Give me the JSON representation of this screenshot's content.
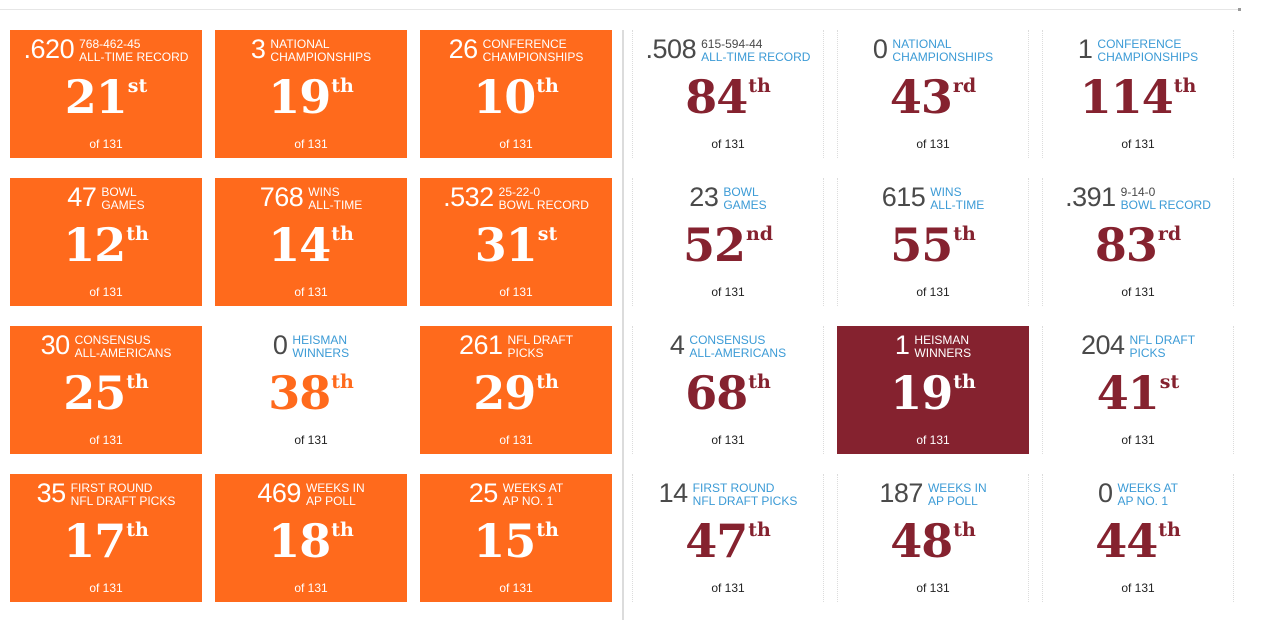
{
  "left_panel": {
    "tiles": [
      {
        "stat": ".620",
        "label": [
          "768-462-45",
          "ALL-TIME RECORD"
        ],
        "rank": "21",
        "suffix": "st",
        "of": "of 131"
      },
      {
        "stat": "3",
        "label": [
          "NATIONAL",
          "CHAMPIONSHIPS"
        ],
        "rank": "19",
        "suffix": "th",
        "of": "of 131"
      },
      {
        "stat": "26",
        "label": [
          "CONFERENCE",
          "CHAMPIONSHIPS"
        ],
        "rank": "10",
        "suffix": "th",
        "of": "of 131"
      },
      {
        "stat": "47",
        "label": [
          "BOWL",
          "GAMES"
        ],
        "rank": "12",
        "suffix": "th",
        "of": "of 131"
      },
      {
        "stat": "768",
        "label": [
          "WINS",
          "ALL-TIME"
        ],
        "rank": "14",
        "suffix": "th",
        "of": "of 131"
      },
      {
        "stat": ".532",
        "label": [
          "25-22-0",
          "BOWL RECORD"
        ],
        "rank": "31",
        "suffix": "st",
        "of": "of 131"
      },
      {
        "stat": "30",
        "label": [
          "CONSENSUS",
          "ALL-AMERICANS"
        ],
        "rank": "25",
        "suffix": "th",
        "of": "of 131"
      },
      {
        "stat": "0",
        "label": [
          "HEISMAN",
          "WINNERS"
        ],
        "rank": "38",
        "suffix": "th",
        "of": "of 131"
      },
      {
        "stat": "261",
        "label": [
          "NFL DRAFT",
          "PICKS"
        ],
        "rank": "29",
        "suffix": "th",
        "of": "of 131"
      },
      {
        "stat": "35",
        "label": [
          "FIRST ROUND",
          "NFL DRAFT PICKS"
        ],
        "rank": "17",
        "suffix": "th",
        "of": "of 131"
      },
      {
        "stat": "469",
        "label": [
          "WEEKS IN",
          "AP POLL"
        ],
        "rank": "18",
        "suffix": "th",
        "of": "of 131"
      },
      {
        "stat": "25",
        "label": [
          "WEEKS AT",
          "AP NO. 1"
        ],
        "rank": "15",
        "suffix": "th",
        "of": "of 131"
      }
    ]
  },
  "right_panel": {
    "tiles": [
      {
        "stat": ".508",
        "label": [
          "615-594-44",
          "ALL-TIME RECORD"
        ],
        "rank": "84",
        "suffix": "th",
        "of": "of 131"
      },
      {
        "stat": "0",
        "label": [
          "NATIONAL",
          "CHAMPIONSHIPS"
        ],
        "rank": "43",
        "suffix": "rd",
        "of": "of 131"
      },
      {
        "stat": "1",
        "label": [
          "CONFERENCE",
          "CHAMPIONSHIPS"
        ],
        "rank": "114",
        "suffix": "th",
        "of": "of 131"
      },
      {
        "stat": "23",
        "label": [
          "BOWL",
          "GAMES"
        ],
        "rank": "52",
        "suffix": "nd",
        "of": "of 131"
      },
      {
        "stat": "615",
        "label": [
          "WINS",
          "ALL-TIME"
        ],
        "rank": "55",
        "suffix": "th",
        "of": "of 131"
      },
      {
        "stat": ".391",
        "label": [
          "9-14-0",
          "BOWL RECORD"
        ],
        "rank": "83",
        "suffix": "rd",
        "of": "of 131"
      },
      {
        "stat": "4",
        "label": [
          "CONSENSUS",
          "ALL-AMERICANS"
        ],
        "rank": "68",
        "suffix": "th",
        "of": "of 131"
      },
      {
        "stat": "1",
        "label": [
          "HEISMAN",
          "WINNERS"
        ],
        "rank": "19",
        "suffix": "th",
        "of": "of 131"
      },
      {
        "stat": "204",
        "label": [
          "NFL DRAFT",
          "PICKS"
        ],
        "rank": "41",
        "suffix": "st",
        "of": "of 131"
      },
      {
        "stat": "14",
        "label": [
          "FIRST ROUND",
          "NFL DRAFT PICKS"
        ],
        "rank": "47",
        "suffix": "th",
        "of": "of 131"
      },
      {
        "stat": "187",
        "label": [
          "WEEKS IN",
          "AP POLL"
        ],
        "rank": "48",
        "suffix": "th",
        "of": "of 131"
      },
      {
        "stat": "0",
        "label": [
          "WEEKS AT",
          "AP NO. 1"
        ],
        "rank": "44",
        "suffix": "th",
        "of": "of 131"
      }
    ]
  },
  "colors": {
    "orange": "#ff6a1c",
    "maroon": "#85222f",
    "label_blue": "#3c9bd6"
  }
}
